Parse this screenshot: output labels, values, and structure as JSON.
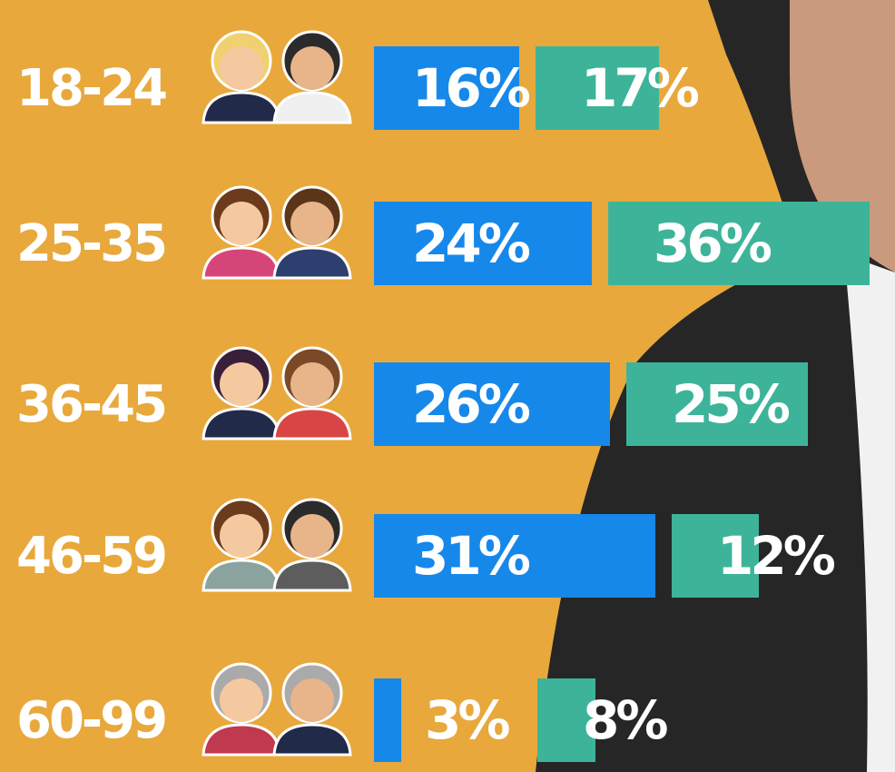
{
  "chart_data": {
    "type": "bar",
    "orientation": "horizontal",
    "categories": [
      "18-24",
      "25-35",
      "36-45",
      "46-59",
      "60-99"
    ],
    "series": [
      {
        "color": "#1688ea",
        "values": [
          16,
          24,
          26,
          31,
          3
        ],
        "value_labels": [
          "16%",
          "24%",
          "26%",
          "31%",
          "3%"
        ]
      },
      {
        "color": "#3db499",
        "values": [
          17,
          36,
          25,
          12,
          8
        ],
        "value_labels": [
          "17%",
          "36%",
          "25%",
          "12%",
          "8%"
        ]
      }
    ]
  }
}
